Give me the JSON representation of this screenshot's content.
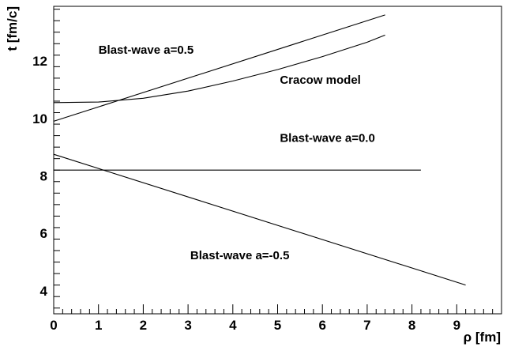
{
  "chart_data": {
    "type": "line",
    "title": "",
    "xlabel": "ρ [fm]",
    "ylabel": "t [fm/c]",
    "xlim": [
      0,
      10
    ],
    "ylim": [
      3.2,
      13.9
    ],
    "x_ticks": [
      "0",
      "1",
      "2",
      "3",
      "4",
      "5",
      "6",
      "7",
      "8",
      "9"
    ],
    "y_ticks": [
      "4",
      "6",
      "8",
      "10",
      "12"
    ],
    "grid": false,
    "series": [
      {
        "name": "Blast-wave a=0.5",
        "x": [
          0,
          7.4
        ],
        "y": [
          9.9,
          13.6
        ]
      },
      {
        "name": "Cracow model",
        "x": [
          0,
          1,
          2,
          3,
          4,
          5,
          6,
          7,
          7.4
        ],
        "y": [
          10.55,
          10.57,
          10.7,
          10.95,
          11.3,
          11.7,
          12.15,
          12.65,
          12.9
        ]
      },
      {
        "name": "Blast-wave a=0.0",
        "x": [
          0,
          8.2
        ],
        "y": [
          8.2,
          8.2
        ]
      },
      {
        "name": "Blast-wave a=-0.5",
        "x": [
          0,
          9.2
        ],
        "y": [
          8.75,
          4.2
        ]
      }
    ],
    "annotations": [
      {
        "text": "Blast-wave a=0.5",
        "x": 1.0,
        "y": 12.25
      },
      {
        "text": "Cracow model",
        "x": 5.05,
        "y": 11.2
      },
      {
        "text": "Blast-wave a=0.0",
        "x": 5.05,
        "y": 9.18
      },
      {
        "text": "Blast-wave a=-0.5",
        "x": 3.05,
        "y": 5.1
      }
    ]
  }
}
